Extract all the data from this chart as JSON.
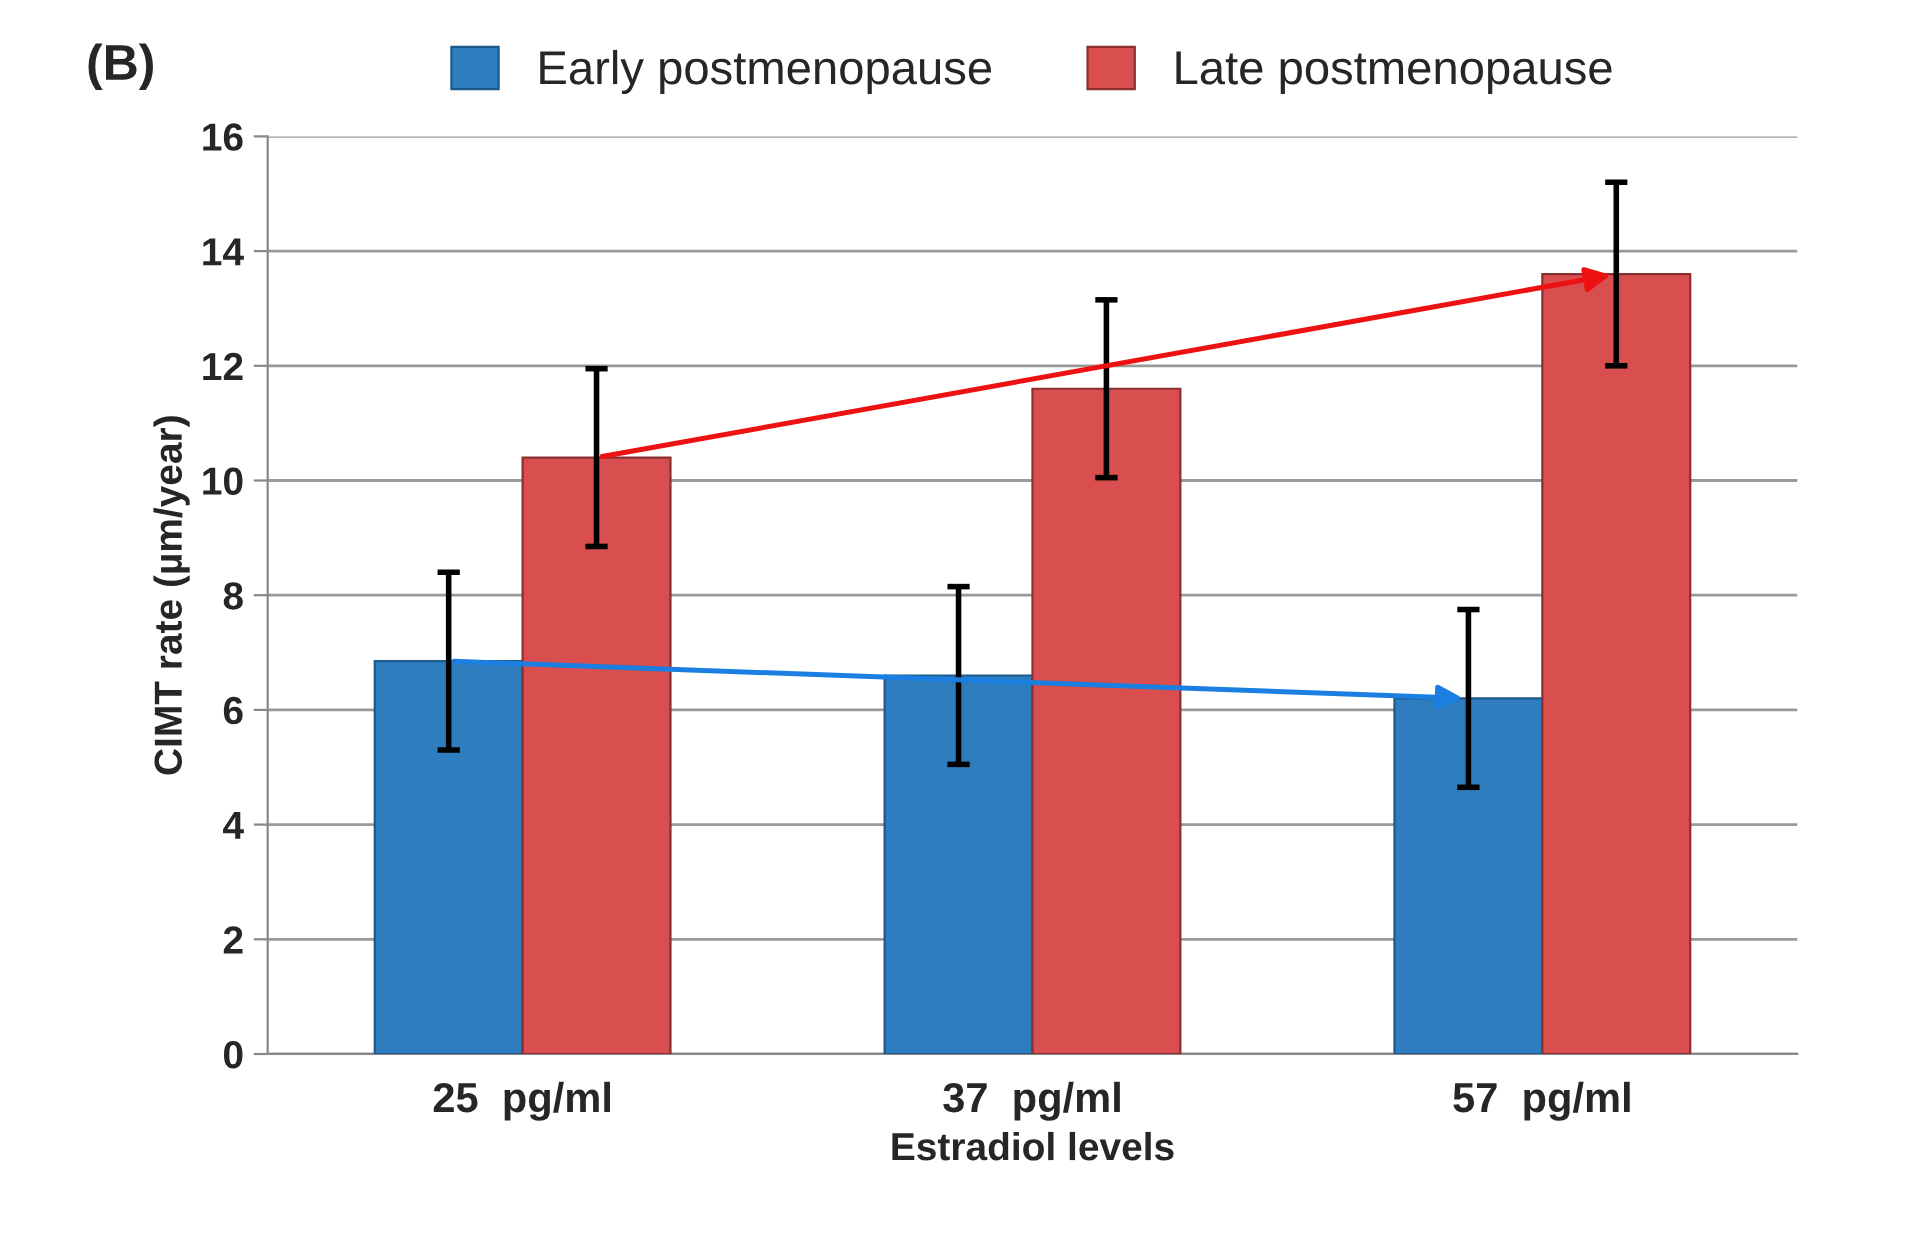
{
  "chart_data": {
    "type": "bar",
    "title": "(B)",
    "xlabel": "Estradiol levels",
    "ylabel": "CIMT rate (µm/year)",
    "categories": [
      "25  pg/ml",
      "37  pg/ml",
      "57  pg/ml"
    ],
    "series": [
      {
        "name": "Early postmenopause",
        "color": "#2e7ebf",
        "values": [
          6.85,
          6.6,
          6.2
        ],
        "errors": [
          1.55,
          1.55,
          1.55
        ]
      },
      {
        "name": "Late postmenopause",
        "color": "#d94f4f",
        "values": [
          10.4,
          11.6,
          13.6
        ],
        "errors": [
          1.55,
          1.55,
          1.6
        ]
      }
    ],
    "ylim": [
      0,
      16
    ],
    "yticks": [
      0,
      2,
      4,
      6,
      8,
      10,
      12,
      14,
      16
    ],
    "grid": "y",
    "legend": "top"
  }
}
